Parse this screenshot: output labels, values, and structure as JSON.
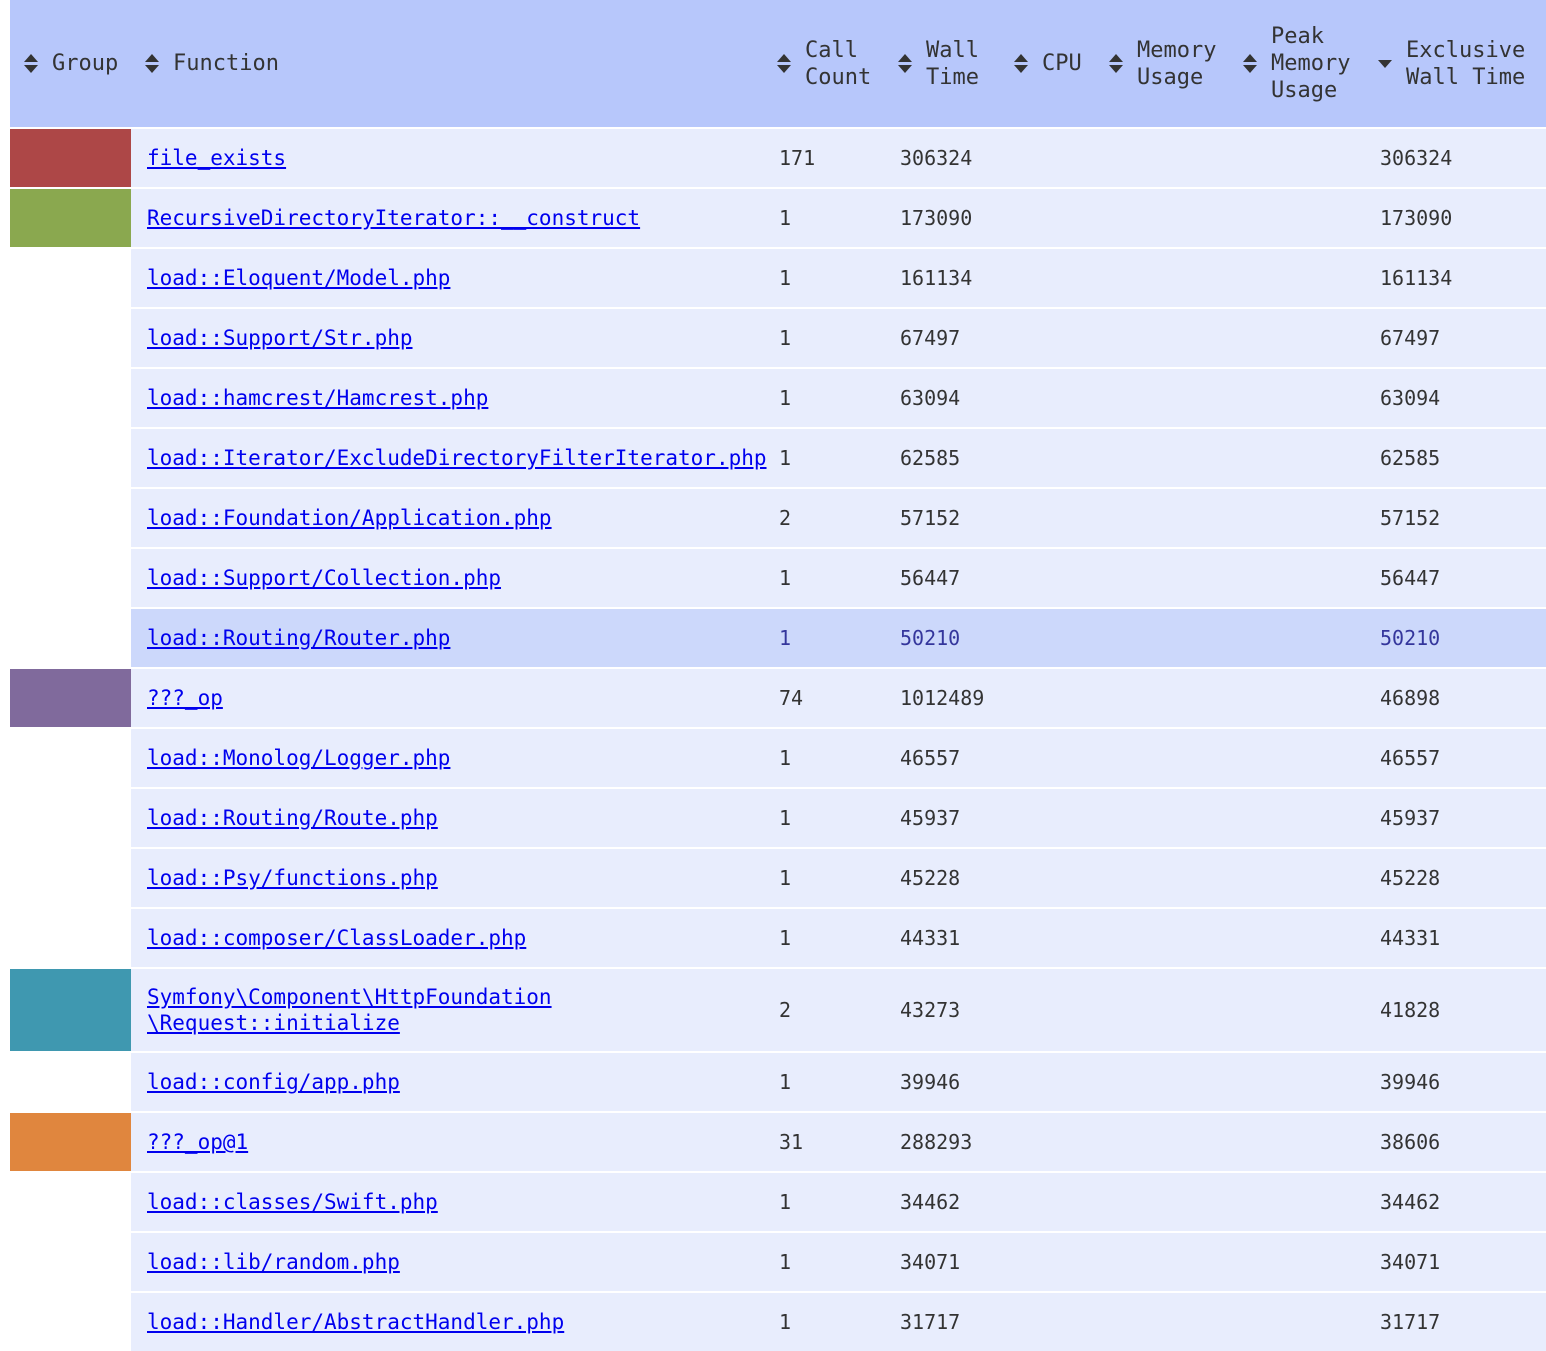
{
  "header": {
    "group": "Group",
    "function": "Function",
    "call_count": "Call\nCount",
    "wall_time": "Wall\nTime",
    "cpu": "CPU",
    "memory_usage": "Memory\nUsage",
    "peak_memory_usage": "Peak\nMemory\nUsage",
    "exclusive_wall_time": "Exclusive\nWall Time",
    "sorted_column": "exclusive_wall_time",
    "sort_direction": "descending"
  },
  "group_colors": {
    "red": "#ad4747",
    "green": "#8aa84f",
    "purple": "#806a9c",
    "teal": "#3f98b0",
    "orange": "#e0863e"
  },
  "rows": [
    {
      "group_color": "#ad4747",
      "function": "file_exists",
      "call_count": "171",
      "wall_time": "306324",
      "cpu": "",
      "memory_usage": "",
      "peak_memory_usage": "",
      "exclusive_wall_time": "306324"
    },
    {
      "group_color": "#8aa84f",
      "function": "RecursiveDirectoryIterator::__construct",
      "call_count": "1",
      "wall_time": "173090",
      "cpu": "",
      "memory_usage": "",
      "peak_memory_usage": "",
      "exclusive_wall_time": "173090"
    },
    {
      "group_color": "",
      "function": "load::Eloquent/Model.php",
      "call_count": "1",
      "wall_time": "161134",
      "cpu": "",
      "memory_usage": "",
      "peak_memory_usage": "",
      "exclusive_wall_time": "161134"
    },
    {
      "group_color": "",
      "function": "load::Support/Str.php",
      "call_count": "1",
      "wall_time": "67497",
      "cpu": "",
      "memory_usage": "",
      "peak_memory_usage": "",
      "exclusive_wall_time": "67497"
    },
    {
      "group_color": "",
      "function": "load::hamcrest/Hamcrest.php",
      "call_count": "1",
      "wall_time": "63094",
      "cpu": "",
      "memory_usage": "",
      "peak_memory_usage": "",
      "exclusive_wall_time": "63094"
    },
    {
      "group_color": "",
      "function": "load::Iterator/ExcludeDirectoryFilterIterator.php",
      "call_count": "1",
      "wall_time": "62585",
      "cpu": "",
      "memory_usage": "",
      "peak_memory_usage": "",
      "exclusive_wall_time": "62585"
    },
    {
      "group_color": "",
      "function": "load::Foundation/Application.php",
      "call_count": "2",
      "wall_time": "57152",
      "cpu": "",
      "memory_usage": "",
      "peak_memory_usage": "",
      "exclusive_wall_time": "57152"
    },
    {
      "group_color": "",
      "function": "load::Support/Collection.php",
      "call_count": "1",
      "wall_time": "56447",
      "cpu": "",
      "memory_usage": "",
      "peak_memory_usage": "",
      "exclusive_wall_time": "56447"
    },
    {
      "group_color": "",
      "function": "load::Routing/Router.php",
      "call_count": "1",
      "wall_time": "50210",
      "cpu": "",
      "memory_usage": "",
      "peak_memory_usage": "",
      "exclusive_wall_time": "50210",
      "highlighted": true
    },
    {
      "group_color": "#806a9c",
      "function": "???_op",
      "call_count": "74",
      "wall_time": "1012489",
      "cpu": "",
      "memory_usage": "",
      "peak_memory_usage": "",
      "exclusive_wall_time": "46898"
    },
    {
      "group_color": "",
      "function": "load::Monolog/Logger.php",
      "call_count": "1",
      "wall_time": "46557",
      "cpu": "",
      "memory_usage": "",
      "peak_memory_usage": "",
      "exclusive_wall_time": "46557"
    },
    {
      "group_color": "",
      "function": "load::Routing/Route.php",
      "call_count": "1",
      "wall_time": "45937",
      "cpu": "",
      "memory_usage": "",
      "peak_memory_usage": "",
      "exclusive_wall_time": "45937"
    },
    {
      "group_color": "",
      "function": "load::Psy/functions.php",
      "call_count": "1",
      "wall_time": "45228",
      "cpu": "",
      "memory_usage": "",
      "peak_memory_usage": "",
      "exclusive_wall_time": "45228"
    },
    {
      "group_color": "",
      "function": "load::composer/ClassLoader.php",
      "call_count": "1",
      "wall_time": "44331",
      "cpu": "",
      "memory_usage": "",
      "peak_memory_usage": "",
      "exclusive_wall_time": "44331"
    },
    {
      "group_color": "#3f98b0",
      "function": "Symfony\\Component\\HttpFoundation\n\\Request::initialize",
      "call_count": "2",
      "wall_time": "43273",
      "cpu": "",
      "memory_usage": "",
      "peak_memory_usage": "",
      "exclusive_wall_time": "41828",
      "tall": true
    },
    {
      "group_color": "",
      "function": "load::config/app.php",
      "call_count": "1",
      "wall_time": "39946",
      "cpu": "",
      "memory_usage": "",
      "peak_memory_usage": "",
      "exclusive_wall_time": "39946"
    },
    {
      "group_color": "#e0863e",
      "function": "???_op@1",
      "call_count": "31",
      "wall_time": "288293",
      "cpu": "",
      "memory_usage": "",
      "peak_memory_usage": "",
      "exclusive_wall_time": "38606"
    },
    {
      "group_color": "",
      "function": "load::classes/Swift.php",
      "call_count": "1",
      "wall_time": "34462",
      "cpu": "",
      "memory_usage": "",
      "peak_memory_usage": "",
      "exclusive_wall_time": "34462"
    },
    {
      "group_color": "",
      "function": "load::lib/random.php",
      "call_count": "1",
      "wall_time": "34071",
      "cpu": "",
      "memory_usage": "",
      "peak_memory_usage": "",
      "exclusive_wall_time": "34071"
    },
    {
      "group_color": "",
      "function": "load::Handler/AbstractHandler.php",
      "call_count": "1",
      "wall_time": "31717",
      "cpu": "",
      "memory_usage": "",
      "peak_memory_usage": "",
      "exclusive_wall_time": "31717"
    }
  ]
}
